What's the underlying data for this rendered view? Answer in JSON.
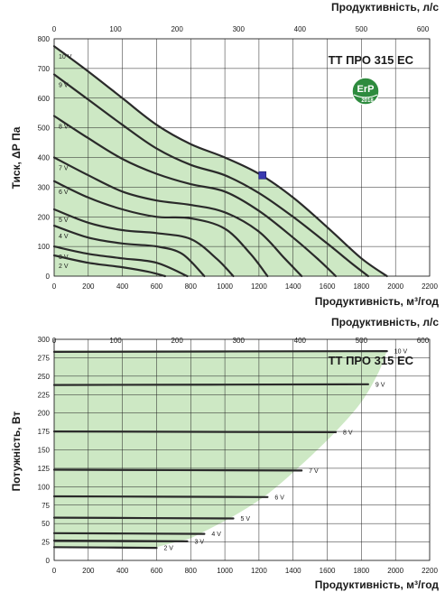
{
  "colors": {
    "fill": "#cde8c4",
    "curve": "#2a2a2a",
    "grid": "#222222",
    "marker": "#3a3ab0",
    "badge": "#2e8b3e"
  },
  "chart_data": [
    {
      "type": "line",
      "model_label": "TT ПРО 315 ЕС",
      "badge": {
        "top": "ErP",
        "bottom": "2018"
      },
      "xlabel": "Продуктивність, м³/год",
      "x2label": "Продуктивність, л/с",
      "ylabel": "Тиск, ΔР Па",
      "xlim": [
        0,
        2200
      ],
      "x2lim": [
        0,
        611
      ],
      "ylim": [
        0,
        800
      ],
      "x_ticks": [
        0,
        200,
        400,
        600,
        800,
        1000,
        1200,
        1400,
        1600,
        1800,
        2000,
        2200
      ],
      "x2_ticks": [
        0,
        100,
        200,
        300,
        400,
        500,
        600
      ],
      "y_ticks": [
        0,
        100,
        200,
        300,
        400,
        500,
        600,
        700,
        800
      ],
      "grid": true,
      "marker": {
        "x": 1220,
        "y": 340
      },
      "series": [
        {
          "name": "10 V",
          "x": [
            0,
            200,
            400,
            600,
            800,
            1000,
            1200,
            1400,
            1600,
            1800,
            1950
          ],
          "y": [
            775,
            690,
            600,
            510,
            445,
            400,
            345,
            265,
            165,
            60,
            0
          ]
        },
        {
          "name": "9 V",
          "x": [
            0,
            200,
            400,
            600,
            800,
            1000,
            1200,
            1400,
            1600,
            1750,
            1840
          ],
          "y": [
            680,
            595,
            510,
            430,
            375,
            340,
            280,
            200,
            110,
            40,
            0
          ]
        },
        {
          "name": "8 V",
          "x": [
            0,
            200,
            400,
            600,
            800,
            1000,
            1200,
            1400,
            1550,
            1650
          ],
          "y": [
            540,
            465,
            395,
            345,
            310,
            285,
            220,
            130,
            55,
            0
          ]
        },
        {
          "name": "7 V",
          "x": [
            0,
            200,
            400,
            600,
            800,
            1000,
            1200,
            1350,
            1450
          ],
          "y": [
            400,
            340,
            285,
            255,
            240,
            215,
            150,
            60,
            0
          ]
        },
        {
          "name": "6 V",
          "x": [
            0,
            200,
            400,
            600,
            800,
            1000,
            1150,
            1250
          ],
          "y": [
            320,
            265,
            225,
            200,
            195,
            160,
            75,
            0
          ]
        },
        {
          "name": "5 V",
          "x": [
            0,
            200,
            400,
            600,
            800,
            950,
            1050
          ],
          "y": [
            225,
            180,
            155,
            145,
            125,
            60,
            0
          ]
        },
        {
          "name": "4 V",
          "x": [
            0,
            200,
            400,
            600,
            750,
            880
          ],
          "y": [
            170,
            130,
            110,
            100,
            75,
            0
          ]
        },
        {
          "name": "3 V",
          "x": [
            0,
            200,
            400,
            600,
            780
          ],
          "y": [
            100,
            75,
            60,
            45,
            0
          ]
        },
        {
          "name": "2 V",
          "x": [
            0,
            200,
            400,
            550,
            650
          ],
          "y": [
            70,
            45,
            30,
            15,
            0
          ]
        }
      ]
    },
    {
      "type": "line",
      "model_label": "TT ПРО 315 ЕС",
      "xlabel": "Продуктивність, м³/год",
      "x2label": "Продуктивність, л/с",
      "ylabel": "Потужність, Вт",
      "xlim": [
        0,
        2200
      ],
      "x2lim": [
        0,
        611
      ],
      "ylim": [
        0,
        300
      ],
      "x_ticks": [
        0,
        200,
        400,
        600,
        800,
        1000,
        1200,
        1400,
        1600,
        1800,
        2000,
        2200
      ],
      "x2_ticks": [
        0,
        100,
        200,
        300,
        400,
        500,
        600
      ],
      "y_ticks": [
        0,
        25,
        50,
        75,
        100,
        125,
        150,
        175,
        200,
        225,
        250,
        275,
        300
      ],
      "grid": true,
      "envelope": {
        "x": [
          0,
          1950,
          1900,
          1800,
          1650,
          1450,
          1250,
          1050,
          800,
          600,
          0
        ],
        "y": [
          285,
          285,
          255,
          215,
          175,
          130,
          90,
          60,
          30,
          18,
          18
        ]
      },
      "series": [
        {
          "name": "10 V",
          "x": [
            0,
            1950
          ],
          "y": [
            283,
            284
          ]
        },
        {
          "name": "9 V",
          "x": [
            0,
            1840
          ],
          "y": [
            238,
            239
          ]
        },
        {
          "name": "8 V",
          "x": [
            0,
            1650
          ],
          "y": [
            175,
            174
          ]
        },
        {
          "name": "7 V",
          "x": [
            0,
            1450
          ],
          "y": [
            123,
            122
          ]
        },
        {
          "name": "6 V",
          "x": [
            0,
            1250
          ],
          "y": [
            87,
            86
          ]
        },
        {
          "name": "5 V",
          "x": [
            0,
            1050
          ],
          "y": [
            58,
            57
          ]
        },
        {
          "name": "4 V",
          "x": [
            0,
            880
          ],
          "y": [
            37,
            36
          ]
        },
        {
          "name": "3 V",
          "x": [
            0,
            780
          ],
          "y": [
            27,
            26
          ]
        },
        {
          "name": "2 V",
          "x": [
            0,
            600
          ],
          "y": [
            18,
            17
          ]
        }
      ]
    }
  ]
}
